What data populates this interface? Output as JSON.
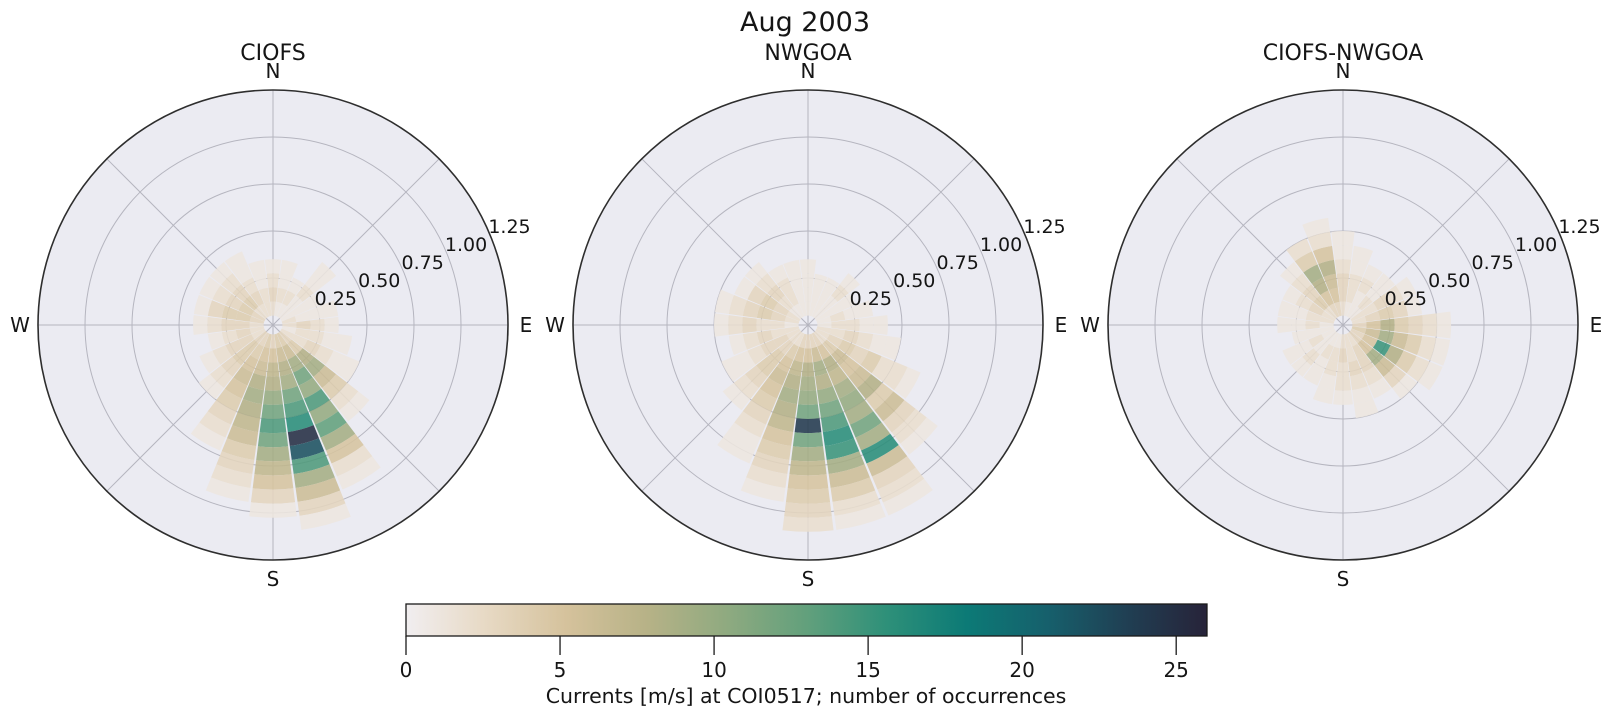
{
  "figure": {
    "title": "Aug 2003"
  },
  "chart_data": {
    "type": "polar-histogram-rose",
    "suptitle": "Aug 2003",
    "compass_labels": [
      "N",
      "E",
      "S",
      "W"
    ],
    "radial_tick_values": [
      0.25,
      0.5,
      0.75,
      1.0,
      1.25
    ],
    "radial_tick_labels": [
      "0.25",
      "0.50",
      "0.75",
      "1.00",
      "1.25"
    ],
    "rmax": 1.25,
    "dir_bin_width_deg": 15,
    "r_start": 0.05,
    "r_bin_width": 0.075,
    "value_min": 0,
    "value_max": 26,
    "colorbar": {
      "label": "Currents [m/s] at COI0517; number of occurrences",
      "ticks": [
        0,
        5,
        10,
        15,
        20,
        25
      ],
      "vmin": 0,
      "vmax": 26
    },
    "colormap_stops": [
      [
        0.0,
        "#f1eef0"
      ],
      [
        0.1,
        "#e7d9c4"
      ],
      [
        0.2,
        "#d5c29c"
      ],
      [
        0.3,
        "#b7b287"
      ],
      [
        0.4,
        "#8faa80"
      ],
      [
        0.5,
        "#62a07c"
      ],
      [
        0.6,
        "#2e9079"
      ],
      [
        0.7,
        "#0c7a76"
      ],
      [
        0.8,
        "#16606c"
      ],
      [
        0.9,
        "#203f53"
      ],
      [
        1.0,
        "#272339"
      ]
    ],
    "subplots": [
      {
        "title": "CIOFS",
        "rose": [
          {
            "dir": 0,
            "counts": [
              2,
              3,
              2,
              1
            ]
          },
          {
            "dir": 15,
            "counts": [
              1,
              2,
              1,
              1
            ]
          },
          {
            "dir": 30,
            "counts": [
              1,
              2,
              1
            ]
          },
          {
            "dir": 45,
            "counts": [
              1,
              1,
              2,
              1,
              1
            ]
          },
          {
            "dir": 60,
            "counts": [
              1,
              1,
              1
            ]
          },
          {
            "dir": 75,
            "counts": [
              2,
              1,
              1,
              1
            ]
          },
          {
            "dir": 90,
            "counts": [
              2,
              3,
              2,
              1
            ]
          },
          {
            "dir": 105,
            "counts": [
              1,
              2,
              2,
              1,
              1
            ]
          },
          {
            "dir": 120,
            "counts": [
              2,
              2,
              3,
              2,
              1,
              1
            ]
          },
          {
            "dir": 135,
            "counts": [
              3,
              4,
              8,
              9,
              6,
              4,
              2,
              1
            ]
          },
          {
            "dir": 150,
            "counts": [
              4,
              6,
              9,
              12,
              10,
              14,
              10,
              13,
              9,
              5,
              2,
              1
            ]
          },
          {
            "dir": 165,
            "counts": [
              4,
              6,
              8,
              9,
              12,
              14,
              16,
              25,
              22,
              14,
              9,
              6,
              3,
              1
            ]
          },
          {
            "dir": 180,
            "counts": [
              3,
              5,
              7,
              8,
              10,
              12,
              14,
              12,
              9,
              7,
              5,
              3,
              1
            ]
          },
          {
            "dir": 195,
            "counts": [
              4,
              5,
              6,
              8,
              9,
              8,
              7,
              6,
              4,
              3,
              2,
              1
            ]
          },
          {
            "dir": 210,
            "counts": [
              3,
              4,
              5,
              6,
              5,
              4,
              3,
              2,
              1
            ]
          },
          {
            "dir": 225,
            "counts": [
              3,
              4,
              4,
              3,
              2,
              1
            ]
          },
          {
            "dir": 240,
            "counts": [
              2,
              3,
              3,
              2,
              1
            ]
          },
          {
            "dir": 255,
            "counts": [
              2,
              3,
              2,
              1
            ]
          },
          {
            "dir": 270,
            "counts": [
              2,
              3,
              3,
              2,
              1
            ]
          },
          {
            "dir": 285,
            "counts": [
              3,
              4,
              4,
              3,
              1
            ]
          },
          {
            "dir": 300,
            "counts": [
              3,
              4,
              3,
              2,
              1
            ]
          },
          {
            "dir": 315,
            "counts": [
              2,
              4,
              3,
              2,
              1
            ]
          },
          {
            "dir": 330,
            "counts": [
              2,
              3,
              2,
              1,
              1
            ]
          },
          {
            "dir": 345,
            "counts": [
              2,
              2,
              1,
              1
            ]
          }
        ]
      },
      {
        "title": "NWGOA",
        "rose": [
          {
            "dir": 0,
            "counts": [
              1,
              1,
              1,
              1
            ]
          },
          {
            "dir": 15,
            "counts": [
              1,
              1,
              1
            ]
          },
          {
            "dir": 30,
            "counts": [
              1,
              1,
              1
            ]
          },
          {
            "dir": 45,
            "counts": [
              1,
              1,
              2,
              1
            ]
          },
          {
            "dir": 60,
            "counts": [
              1,
              1,
              1
            ]
          },
          {
            "dir": 75,
            "counts": [
              1,
              2,
              1,
              1
            ]
          },
          {
            "dir": 90,
            "counts": [
              1,
              2,
              2,
              1,
              1
            ]
          },
          {
            "dir": 105,
            "counts": [
              2,
              2,
              3,
              2,
              1,
              1
            ]
          },
          {
            "dir": 120,
            "counts": [
              2,
              3,
              4,
              3,
              4,
              2,
              2,
              1
            ]
          },
          {
            "dir": 135,
            "counts": [
              2,
              4,
              6,
              5,
              6,
              8,
              4,
              6,
              3,
              2,
              1
            ]
          },
          {
            "dir": 150,
            "counts": [
              3,
              5,
              8,
              7,
              9,
              10,
              9,
              12,
              9,
              16,
              6,
              3,
              2,
              1
            ]
          },
          {
            "dir": 165,
            "counts": [
              3,
              6,
              9,
              8,
              10,
              12,
              14,
              16,
              15,
              9,
              6,
              4,
              2,
              1
            ]
          },
          {
            "dir": 180,
            "counts": [
              3,
              5,
              8,
              9,
              10,
              12,
              24,
              12,
              9,
              7,
              5,
              4,
              3,
              2
            ]
          },
          {
            "dir": 195,
            "counts": [
              3,
              5,
              7,
              8,
              9,
              8,
              7,
              5,
              4,
              3,
              2,
              1
            ]
          },
          {
            "dir": 210,
            "counts": [
              2,
              4,
              5,
              6,
              5,
              4,
              3,
              2,
              1,
              1
            ]
          },
          {
            "dir": 225,
            "counts": [
              2,
              3,
              4,
              4,
              3,
              2,
              1
            ]
          },
          {
            "dir": 240,
            "counts": [
              2,
              3,
              3,
              2,
              1,
              1
            ]
          },
          {
            "dir": 255,
            "counts": [
              2,
              2,
              3,
              2,
              1
            ]
          },
          {
            "dir": 270,
            "counts": [
              1,
              2,
              2,
              3,
              2,
              1
            ]
          },
          {
            "dir": 285,
            "counts": [
              2,
              3,
              4,
              3,
              2,
              1
            ]
          },
          {
            "dir": 300,
            "counts": [
              2,
              3,
              4,
              3,
              1
            ]
          },
          {
            "dir": 315,
            "counts": [
              1,
              2,
              3,
              2,
              1
            ]
          },
          {
            "dir": 330,
            "counts": [
              1,
              2,
              2,
              1
            ]
          },
          {
            "dir": 345,
            "counts": [
              1,
              1,
              1,
              1
            ]
          }
        ]
      },
      {
        "title": "CIOFS-NWGOA",
        "rose": [
          {
            "dir": 0,
            "counts": [
              2,
              3,
              3,
              2,
              1,
              1
            ]
          },
          {
            "dir": 15,
            "counts": [
              1,
              2,
              2,
              1,
              1
            ]
          },
          {
            "dir": 30,
            "counts": [
              1,
              1,
              2,
              1
            ]
          },
          {
            "dir": 45,
            "counts": [
              1,
              2,
              1,
              1
            ]
          },
          {
            "dir": 60,
            "counts": [
              2,
              2,
              3,
              2,
              1
            ]
          },
          {
            "dir": 75,
            "counts": [
              2,
              3,
              4,
              3,
              1
            ]
          },
          {
            "dir": 90,
            "counts": [
              3,
              5,
              8,
              4,
              3,
              2,
              1
            ]
          },
          {
            "dir": 105,
            "counts": [
              4,
              6,
              9,
              6,
              4,
              2,
              1
            ]
          },
          {
            "dir": 120,
            "counts": [
              3,
              5,
              15,
              8,
              4,
              2,
              1
            ]
          },
          {
            "dir": 135,
            "counts": [
              3,
              5,
              9,
              6,
              3,
              1
            ]
          },
          {
            "dir": 150,
            "counts": [
              2,
              3,
              3,
              2,
              1
            ]
          },
          {
            "dir": 165,
            "counts": [
              2,
              2,
              3,
              2,
              1,
              1
            ]
          },
          {
            "dir": 180,
            "counts": [
              2,
              3,
              2,
              2,
              1
            ]
          },
          {
            "dir": 195,
            "counts": [
              1,
              2,
              2,
              1,
              1
            ]
          },
          {
            "dir": 210,
            "counts": [
              1,
              2,
              1,
              1
            ]
          },
          {
            "dir": 225,
            "counts": [
              1,
              1,
              2,
              1
            ]
          },
          {
            "dir": 240,
            "counts": [
              1,
              2,
              1,
              1
            ]
          },
          {
            "dir": 255,
            "counts": [
              1,
              1,
              1
            ]
          },
          {
            "dir": 270,
            "counts": [
              1,
              2,
              1,
              1
            ]
          },
          {
            "dir": 285,
            "counts": [
              2,
              2,
              1,
              1
            ]
          },
          {
            "dir": 300,
            "counts": [
              2,
              3,
              2,
              1
            ]
          },
          {
            "dir": 315,
            "counts": [
              2,
              4,
              3,
              2,
              1
            ]
          },
          {
            "dir": 330,
            "counts": [
              3,
              5,
              8,
              9,
              4,
              2
            ]
          },
          {
            "dir": 345,
            "counts": [
              3,
              5,
              6,
              8,
              5,
              2,
              1
            ]
          }
        ]
      }
    ]
  },
  "colors": {
    "figure_bg": "#ffffff",
    "axes_bg": "#ebebf2",
    "grid": "#b5b5bf",
    "spine": "#2e2e2e",
    "text": "#151515"
  }
}
